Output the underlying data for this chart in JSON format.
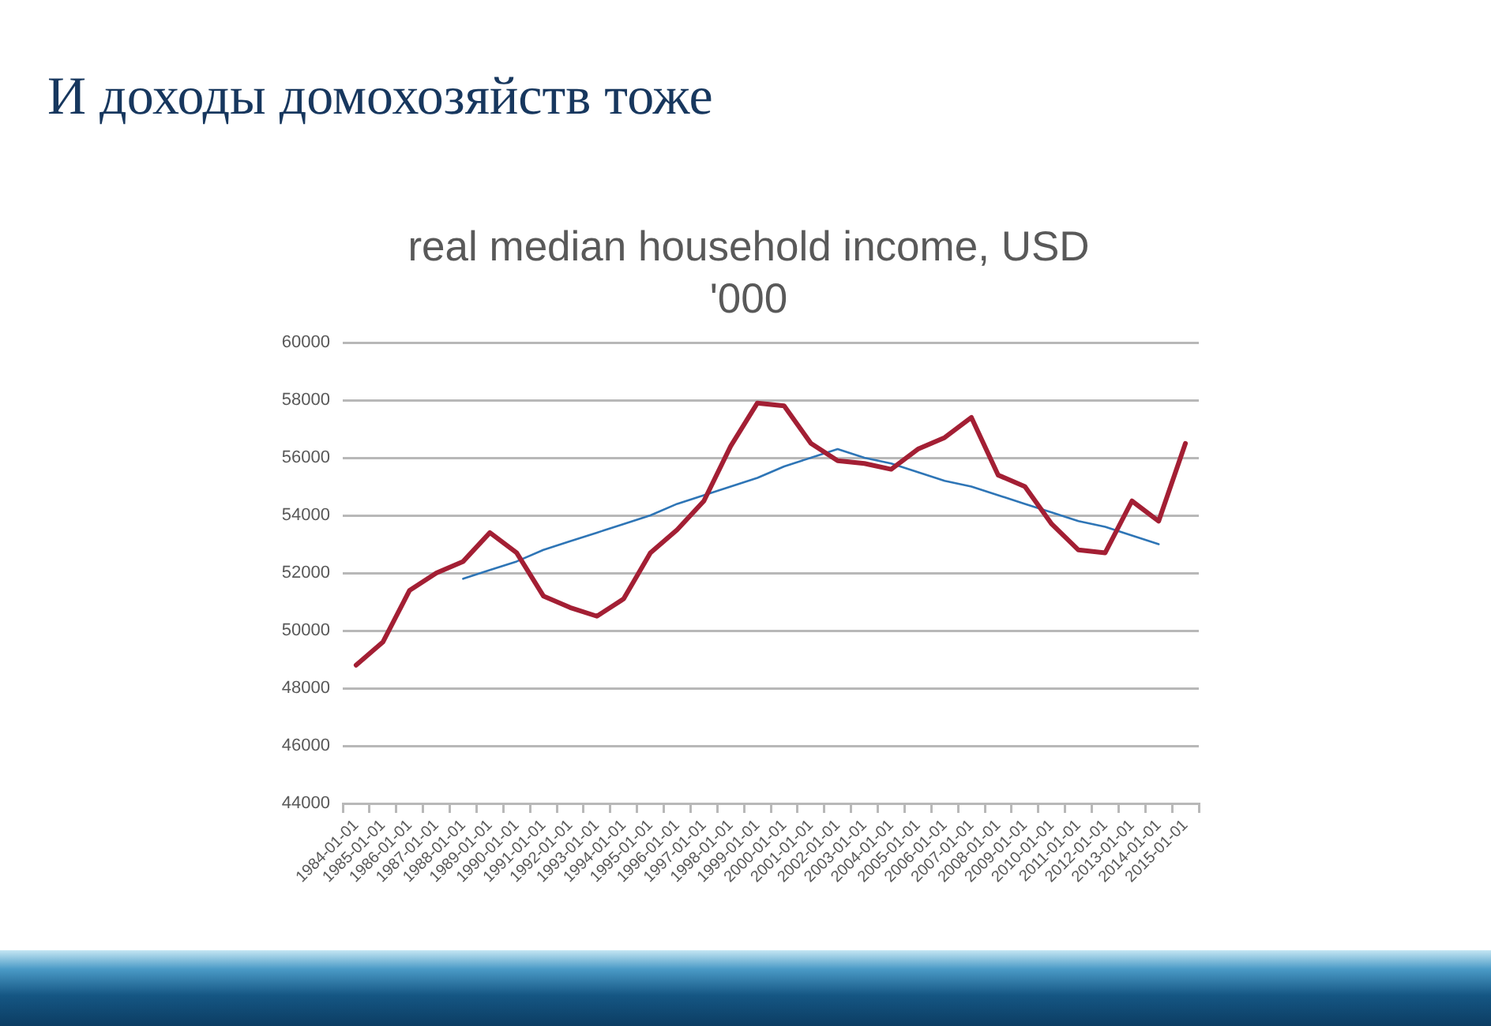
{
  "chart_data": {
    "type": "line",
    "title": "И доходы домохозяйств тоже",
    "subtitle": "real median household income, USD '000",
    "categories": [
      "1984-01-01",
      "1985-01-01",
      "1986-01-01",
      "1987-01-01",
      "1988-01-01",
      "1989-01-01",
      "1990-01-01",
      "1991-01-01",
      "1992-01-01",
      "1993-01-01",
      "1994-01-01",
      "1995-01-01",
      "1996-01-01",
      "1997-01-01",
      "1998-01-01",
      "1999-01-01",
      "2000-01-01",
      "2001-01-01",
      "2002-01-01",
      "2003-01-01",
      "2004-01-01",
      "2005-01-01",
      "2006-01-01",
      "2007-01-01",
      "2008-01-01",
      "2009-01-01",
      "2010-01-01",
      "2011-01-01",
      "2012-01-01",
      "2013-01-01",
      "2014-01-01",
      "2015-01-01"
    ],
    "series": [
      {
        "color": "#a31f34",
        "values": [
          48800,
          49600,
          51400,
          52000,
          52400,
          53400,
          52700,
          51200,
          50800,
          50500,
          51100,
          52700,
          53500,
          54500,
          56400,
          57900,
          57800,
          56500,
          55900,
          55800,
          55600,
          56300,
          56700,
          57400,
          55400,
          55000,
          53700,
          52800,
          52700,
          54500,
          53800,
          56500
        ]
      },
      {
        "type": "line",
        "color": "#2e75b6",
        "values": [
          null,
          null,
          null,
          null,
          51800,
          52100,
          52400,
          52800,
          53100,
          53400,
          53700,
          54000,
          54400,
          54700,
          55000,
          55300,
          55700,
          56000,
          56300,
          56000,
          55800,
          55500,
          55200,
          55000,
          54700,
          54400,
          54100,
          53800,
          53600,
          53300,
          53000,
          null
        ]
      }
    ],
    "ylim": [
      44000,
      60000
    ],
    "yticks": [
      44000,
      46000,
      48000,
      50000,
      52000,
      54000,
      56000,
      58000,
      60000
    ],
    "grid": "y",
    "marker": "none"
  }
}
